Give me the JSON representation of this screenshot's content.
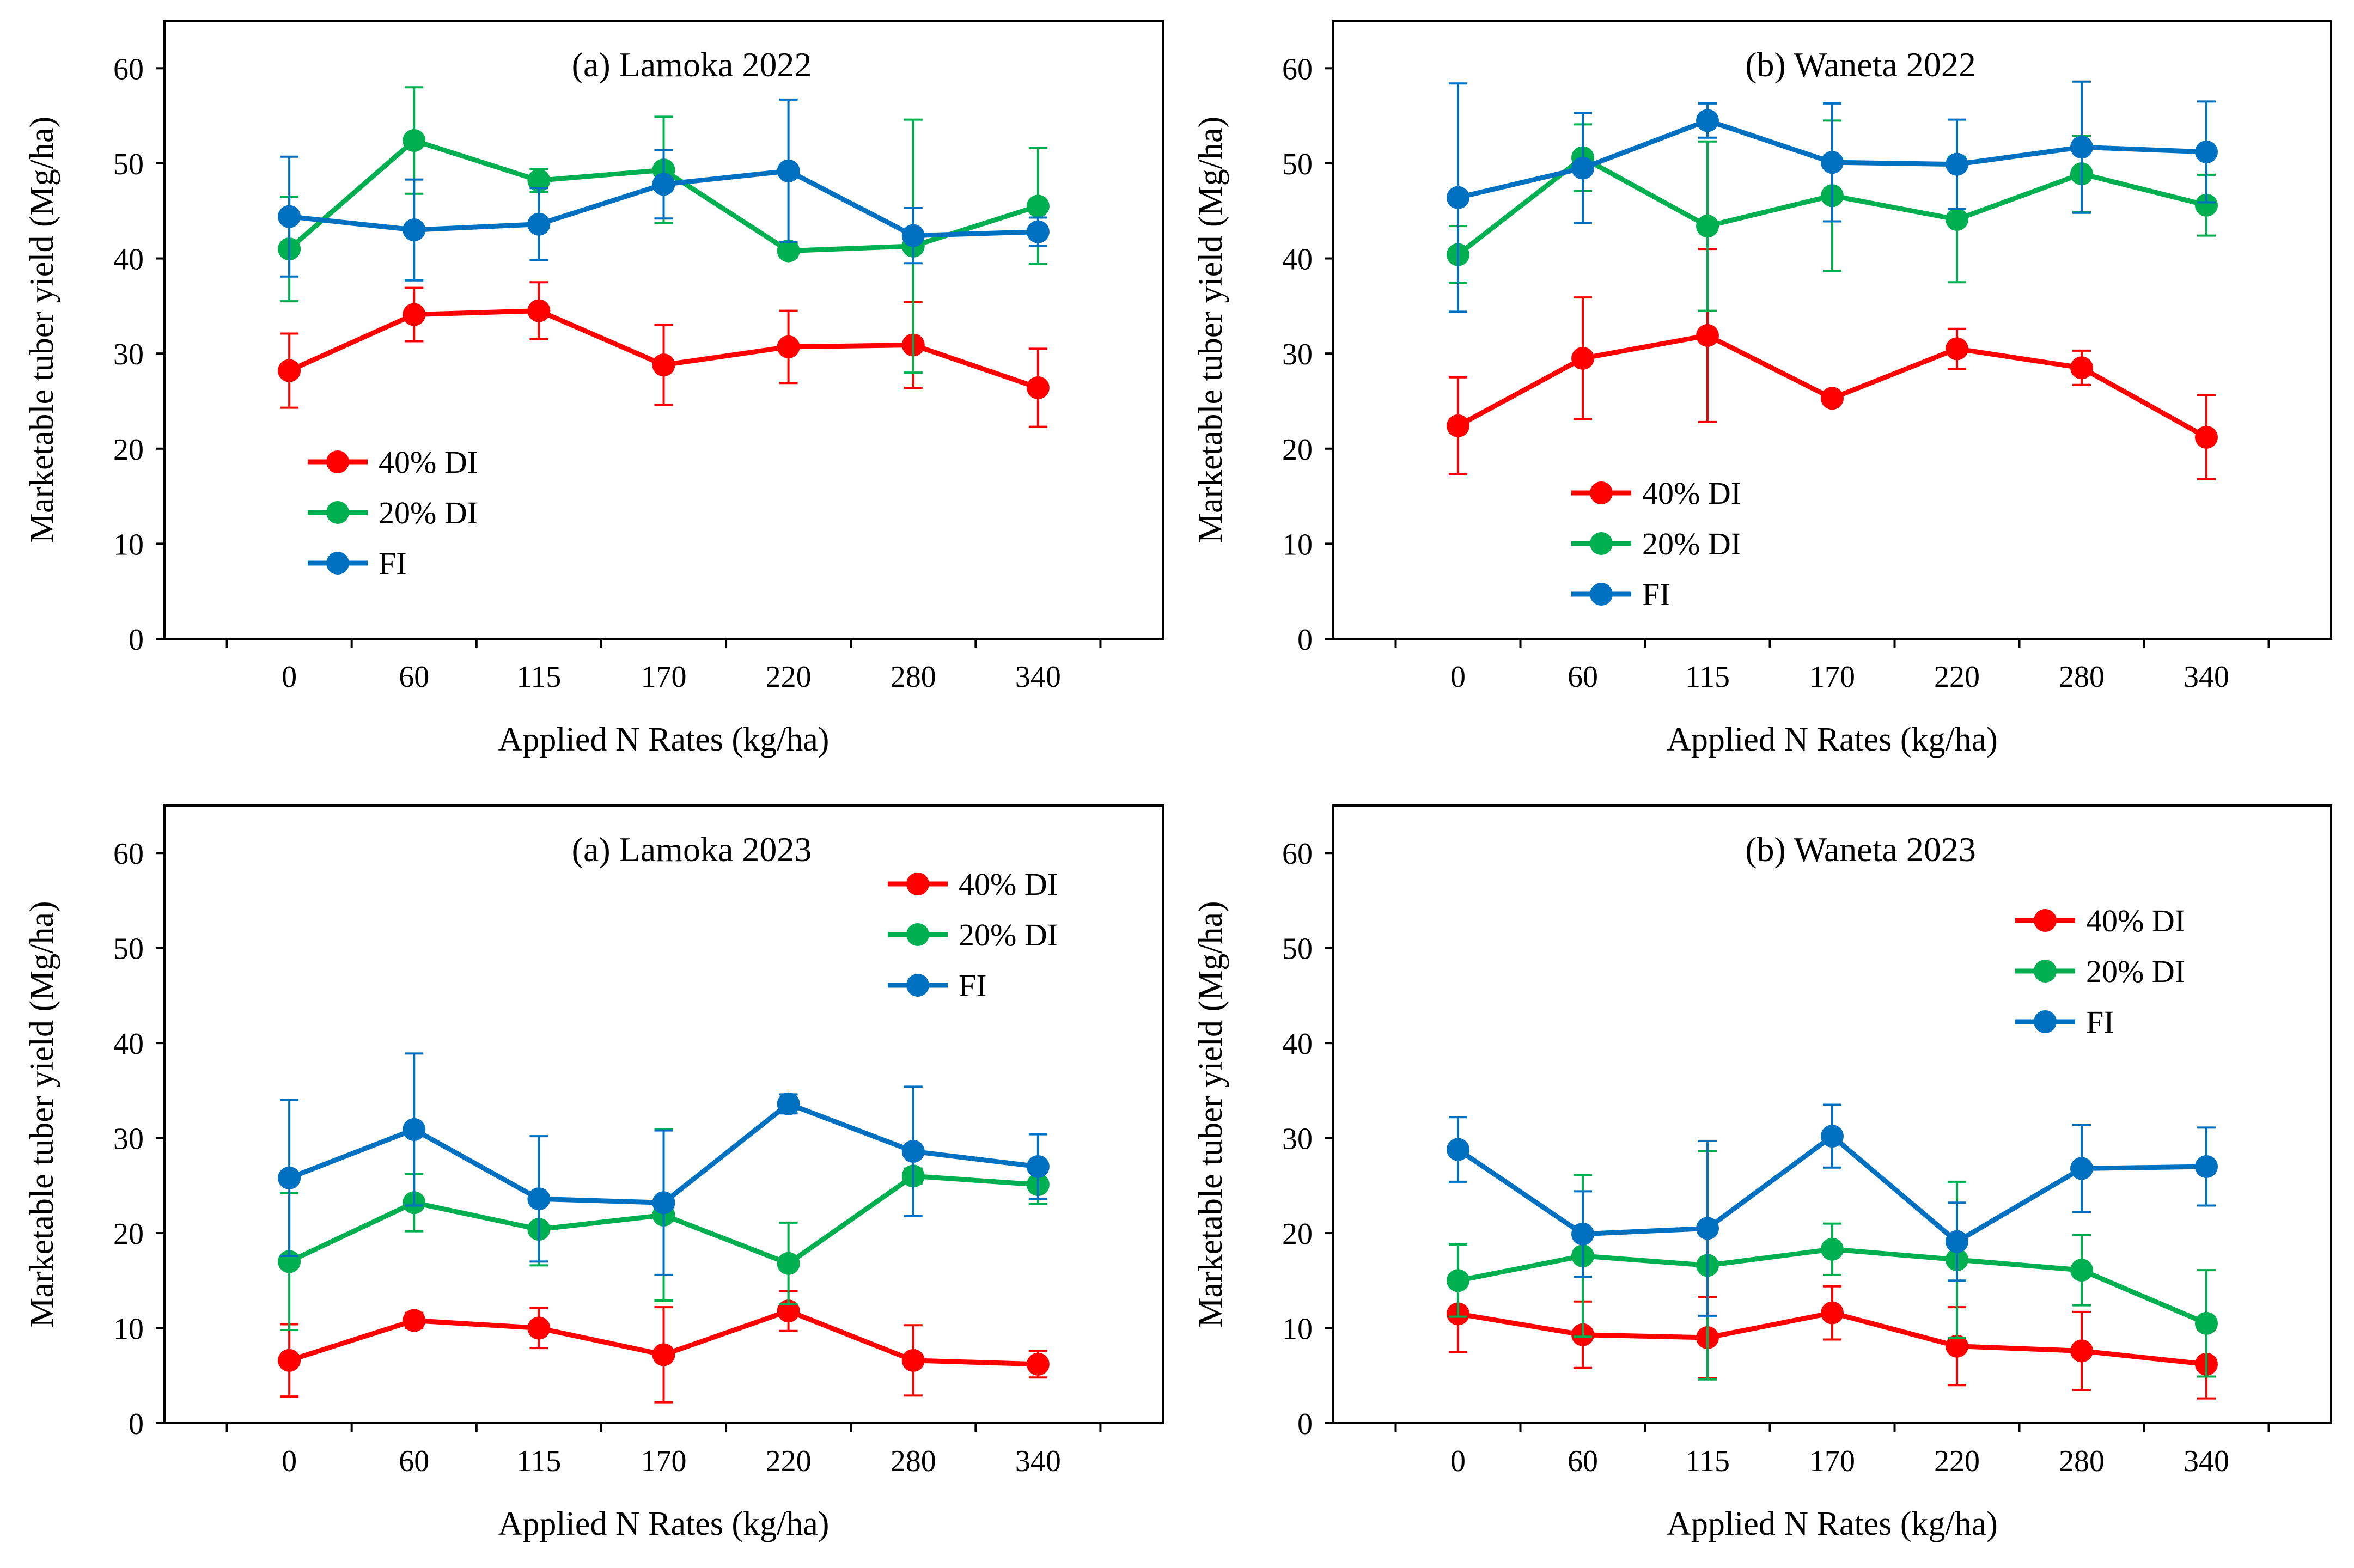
{
  "colors": {
    "40% DI": "#ff0000",
    "20% DI": "#00b050",
    "FI": "#0070c0"
  },
  "chart_data": [
    {
      "type": "line",
      "title": "(a) Lamoka 2022",
      "xlabel": "Applied N Rates (kg/ha)",
      "ylabel": "Marketable tuber yield (Mg/ha)",
      "categories": [
        "0",
        "60",
        "115",
        "170",
        "220",
        "280",
        "340"
      ],
      "ylim": [
        0,
        65
      ],
      "yticks": [
        0,
        10,
        20,
        30,
        40,
        50,
        60
      ],
      "legend_position": "bottom-left",
      "series": [
        {
          "name": "40% DI",
          "values": [
            28.2,
            34.1,
            34.5,
            28.8,
            30.7,
            30.9,
            26.4
          ],
          "errors": [
            3.9,
            2.8,
            3.0,
            4.2,
            3.8,
            4.5,
            4.1
          ]
        },
        {
          "name": "20% DI",
          "values": [
            41.0,
            52.4,
            48.2,
            49.3,
            40.8,
            41.3,
            45.5
          ],
          "errors": [
            5.5,
            5.6,
            1.2,
            5.6,
            0.7,
            13.3,
            6.1
          ]
        },
        {
          "name": "FI",
          "values": [
            44.4,
            43.0,
            43.6,
            47.8,
            49.2,
            42.4,
            42.8
          ],
          "errors": [
            6.3,
            5.3,
            3.8,
            3.6,
            7.5,
            2.9,
            1.5
          ]
        }
      ]
    },
    {
      "type": "line",
      "title": "(b) Waneta 2022",
      "xlabel": "Applied N Rates (kg/ha)",
      "ylabel": "Marketable tuber yield (Mg/ha)",
      "categories": [
        "0",
        "60",
        "115",
        "170",
        "220",
        "280",
        "340"
      ],
      "ylim": [
        0,
        65
      ],
      "yticks": [
        0,
        10,
        20,
        30,
        40,
        50,
        60
      ],
      "legend_position": "bottom-left",
      "series": [
        {
          "name": "40% DI",
          "values": [
            22.4,
            29.5,
            31.9,
            25.3,
            30.5,
            28.5,
            21.2
          ],
          "errors": [
            5.1,
            6.4,
            9.1,
            0.6,
            2.1,
            1.8,
            4.4
          ]
        },
        {
          "name": "20% DI",
          "values": [
            40.4,
            50.6,
            43.4,
            46.6,
            44.1,
            48.9,
            45.6
          ],
          "errors": [
            3.0,
            3.5,
            8.9,
            7.9,
            6.6,
            4.0,
            3.2
          ]
        },
        {
          "name": "FI",
          "values": [
            46.4,
            49.5,
            54.5,
            50.1,
            49.9,
            51.7,
            51.2
          ],
          "errors": [
            12.0,
            5.8,
            1.8,
            6.2,
            4.7,
            6.9,
            5.3
          ]
        }
      ]
    },
    {
      "type": "line",
      "title": "(a) Lamoka 2023",
      "xlabel": "Applied N Rates (kg/ha)",
      "ylabel": "Marketable tuber yield (Mg/ha)",
      "categories": [
        "0",
        "60",
        "115",
        "170",
        "220",
        "280",
        "340"
      ],
      "ylim": [
        0,
        65
      ],
      "yticks": [
        0,
        10,
        20,
        30,
        40,
        50,
        60
      ],
      "legend_position": "top-right",
      "series": [
        {
          "name": "40% DI",
          "values": [
            6.6,
            10.8,
            10.0,
            7.2,
            11.8,
            6.6,
            6.2
          ],
          "errors": [
            3.8,
            0.8,
            2.1,
            5.0,
            2.1,
            3.7,
            1.4
          ]
        },
        {
          "name": "20% DI",
          "values": [
            17.0,
            23.2,
            20.4,
            21.9,
            16.8,
            26.0,
            25.1
          ],
          "errors": [
            7.2,
            3.0,
            3.8,
            9.0,
            4.3,
            0.8,
            2.0
          ]
        },
        {
          "name": "FI",
          "values": [
            25.8,
            30.9,
            23.6,
            23.2,
            33.6,
            28.6,
            27.0
          ],
          "errors": [
            8.2,
            8.0,
            6.6,
            7.6,
            1.0,
            6.8,
            3.4
          ]
        }
      ]
    },
    {
      "type": "line",
      "title": "(b) Waneta 2023",
      "xlabel": "Applied N Rates (kg/ha)",
      "ylabel": "Marketable tuber yield (Mg/ha)",
      "categories": [
        "0",
        "60",
        "115",
        "170",
        "220",
        "280",
        "340"
      ],
      "ylim": [
        0,
        65
      ],
      "yticks": [
        0,
        10,
        20,
        30,
        40,
        50,
        60
      ],
      "legend_position": "top-right",
      "series": [
        {
          "name": "40% DI",
          "values": [
            11.5,
            9.3,
            9.0,
            11.6,
            8.1,
            7.6,
            6.2
          ],
          "errors": [
            4.0,
            3.5,
            4.3,
            2.8,
            4.1,
            4.1,
            3.6
          ]
        },
        {
          "name": "20% DI",
          "values": [
            15.0,
            17.6,
            16.6,
            18.3,
            17.2,
            16.1,
            10.5
          ],
          "errors": [
            3.8,
            8.5,
            12.0,
            2.7,
            8.2,
            3.7,
            5.6
          ]
        },
        {
          "name": "FI",
          "values": [
            28.8,
            19.9,
            20.5,
            30.2,
            19.1,
            26.8,
            27.0
          ],
          "errors": [
            3.4,
            4.5,
            9.2,
            3.3,
            4.1,
            4.6,
            4.1
          ]
        }
      ]
    }
  ]
}
